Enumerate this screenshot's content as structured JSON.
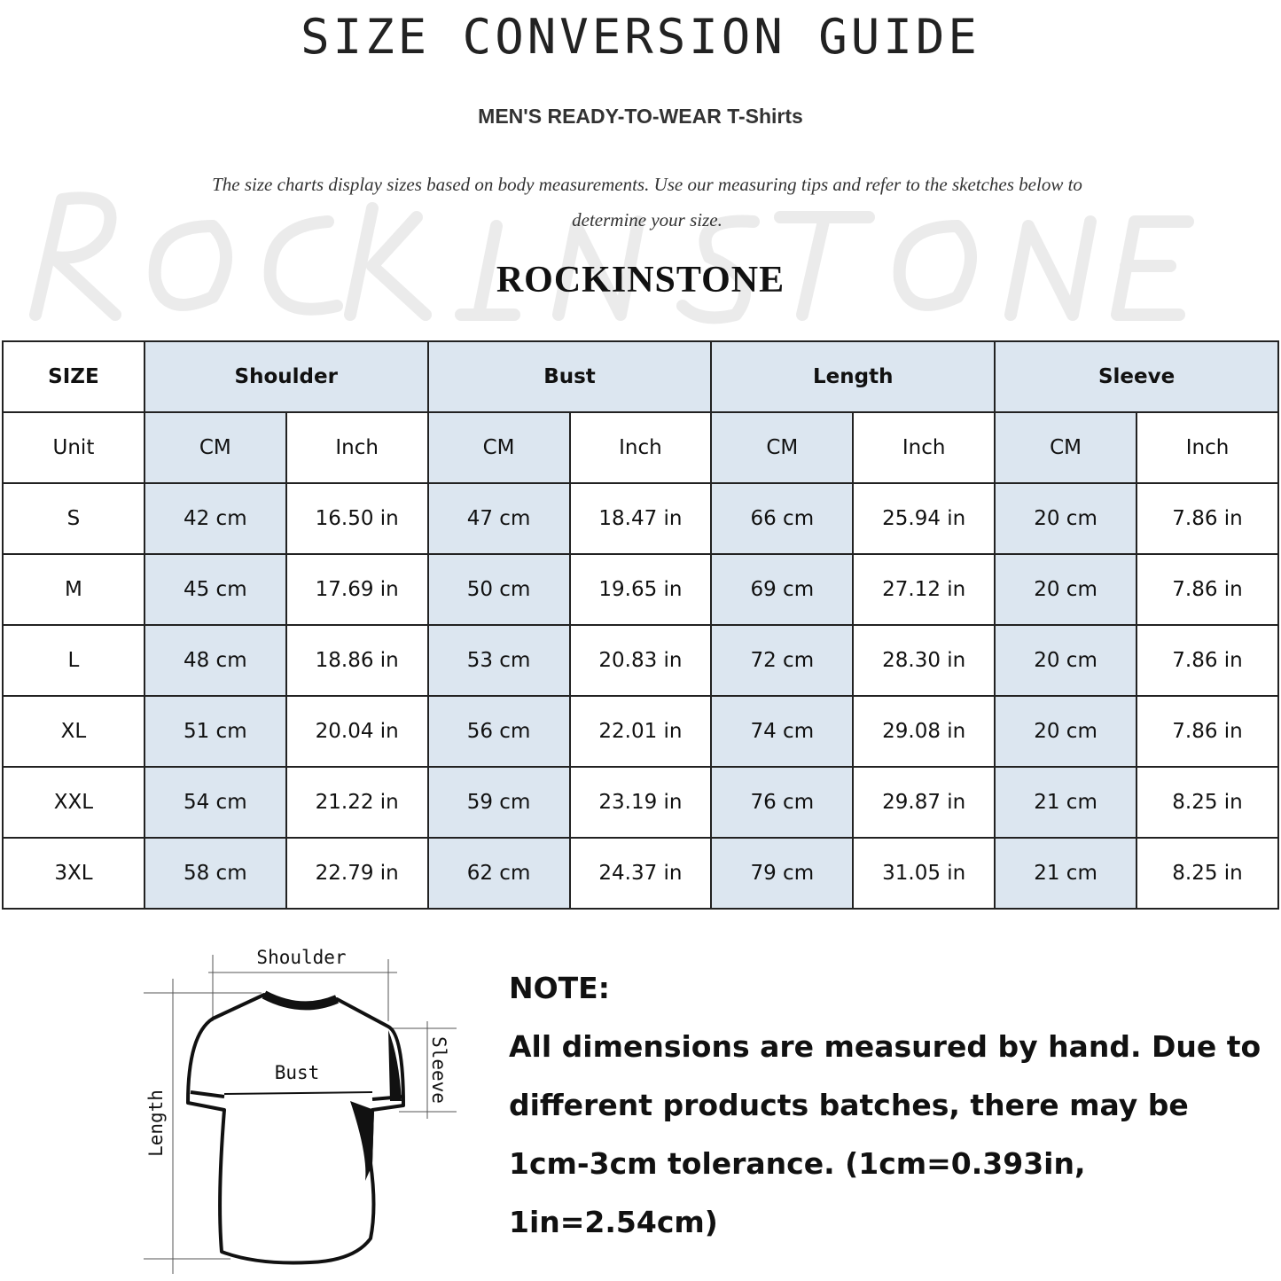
{
  "title": "SIZE CONVERSION GUIDE",
  "subtitle": "MEN'S READY-TO-WEAR T-Shirts",
  "description": "The size charts display sizes based on body measurements. Use our measuring tips and refer to the sketches below to determine your size.",
  "watermark": "ROCKINSTONE",
  "brand": "ROCKINSTONE",
  "colors": {
    "header_shade": "#dce6f0",
    "border": "#222222"
  },
  "table": {
    "size_header": "SIZE",
    "groups": [
      "Shoulder",
      "Bust",
      "Length",
      "Sleeve"
    ],
    "unit_label": "Unit",
    "units": [
      "CM",
      "Inch"
    ],
    "rows": [
      {
        "size": "S",
        "values": [
          "42 cm",
          "16.50 in",
          "47 cm",
          "18.47  in",
          "66 cm",
          "25.94  in",
          "20 cm",
          "7.86  in"
        ]
      },
      {
        "size": "M",
        "values": [
          "45 cm",
          "17.69  in",
          "50 cm",
          "19.65  in",
          "69 cm",
          "27.12  in",
          "20 cm",
          "7.86  in"
        ]
      },
      {
        "size": "L",
        "values": [
          "48 cm",
          "18.86  in",
          "53 cm",
          "20.83  in",
          "72 cm",
          "28.30  in",
          "20 cm",
          "7.86  in"
        ]
      },
      {
        "size": "XL",
        "values": [
          "51 cm",
          "20.04  in",
          "56 cm",
          "22.01  in",
          "74 cm",
          "29.08  in",
          "20 cm",
          "7.86  in"
        ]
      },
      {
        "size": "XXL",
        "values": [
          "54 cm",
          "21.22  in",
          "59 cm",
          "23.19  in",
          "76 cm",
          "29.87  in",
          "21 cm",
          "8.25  in"
        ]
      },
      {
        "size": "3XL",
        "values": [
          "58 cm",
          "22.79  in",
          "62 cm",
          "24.37  in",
          "79 cm",
          "31.05  in",
          "21 cm",
          "8.25  in"
        ]
      }
    ]
  },
  "sketch": {
    "shoulder": "Shoulder",
    "bust": "Bust",
    "sleeve": "Sleeve",
    "length": "Length"
  },
  "note": {
    "heading": "NOTE:",
    "lines": [
      "All dimensions are measured by hand. Due to",
      "different products batches, there may be",
      "1cm-3cm tolerance. (1cm=0.393in, 1in=2.54cm)"
    ]
  }
}
